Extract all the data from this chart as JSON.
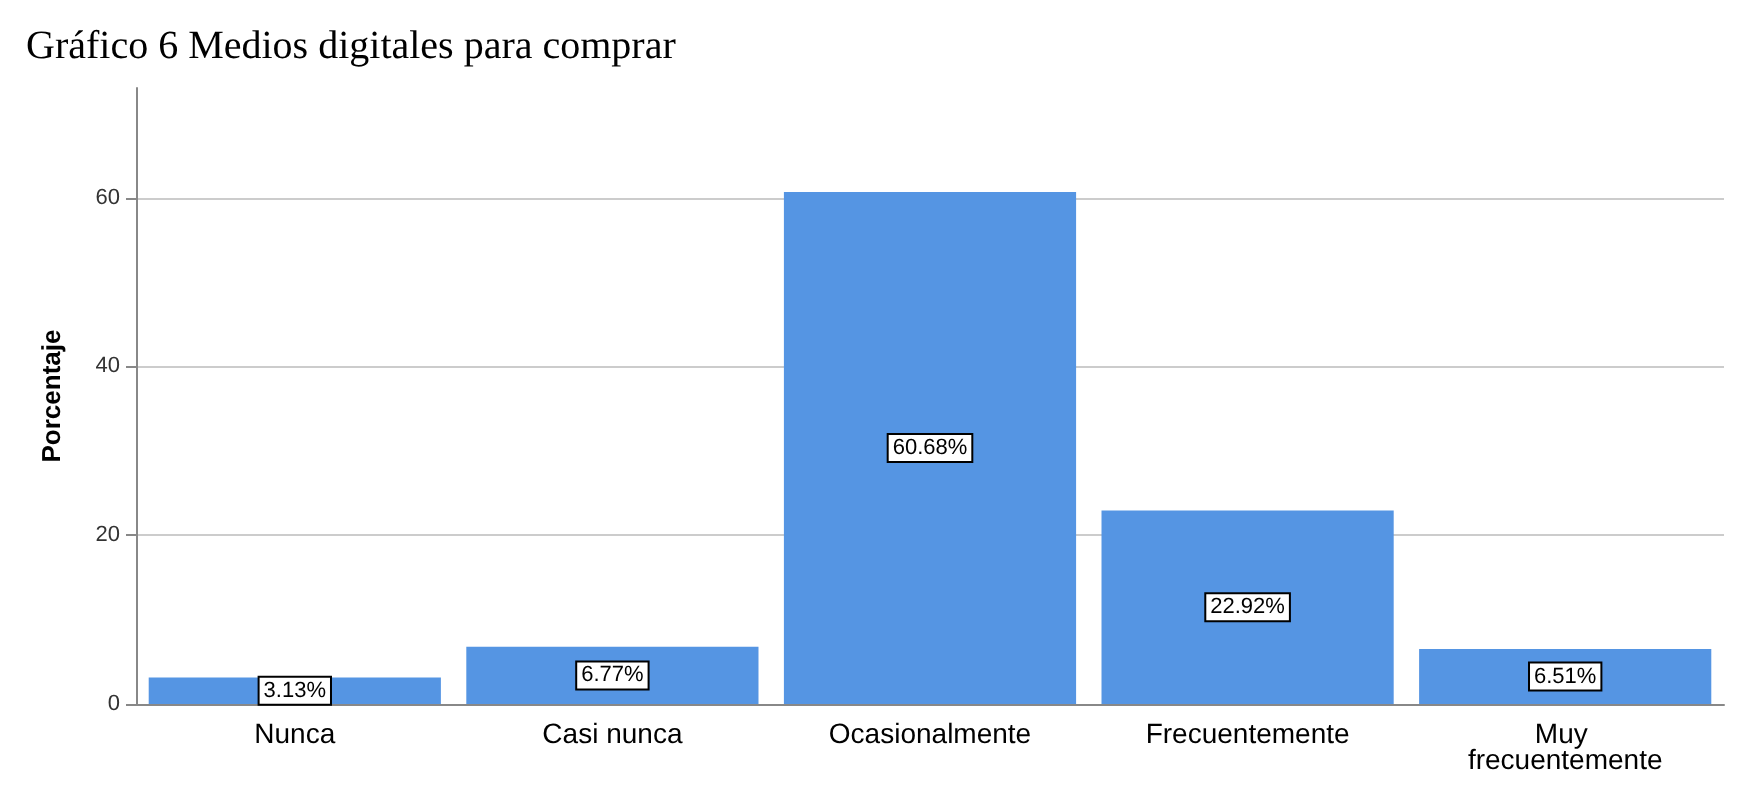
{
  "chart_data": {
    "type": "bar",
    "title": "Gráfico 6 Medios digitales para comprar",
    "ylabel": "Porcentaje",
    "categories": [
      "Nunca",
      "Casi nunca",
      "Ocasionalmente",
      "Frecuentemente",
      "Muy frecuentemente"
    ],
    "values": [
      3.13,
      6.77,
      60.68,
      22.92,
      6.51
    ],
    "value_labels": [
      "3.13%",
      "6.77%",
      "60.68%",
      "22.92%",
      "6.51%"
    ],
    "color": "#5595e3",
    "ylim": [
      0,
      73
    ],
    "yticks": [
      0,
      20,
      40,
      60
    ],
    "grid": "y"
  }
}
